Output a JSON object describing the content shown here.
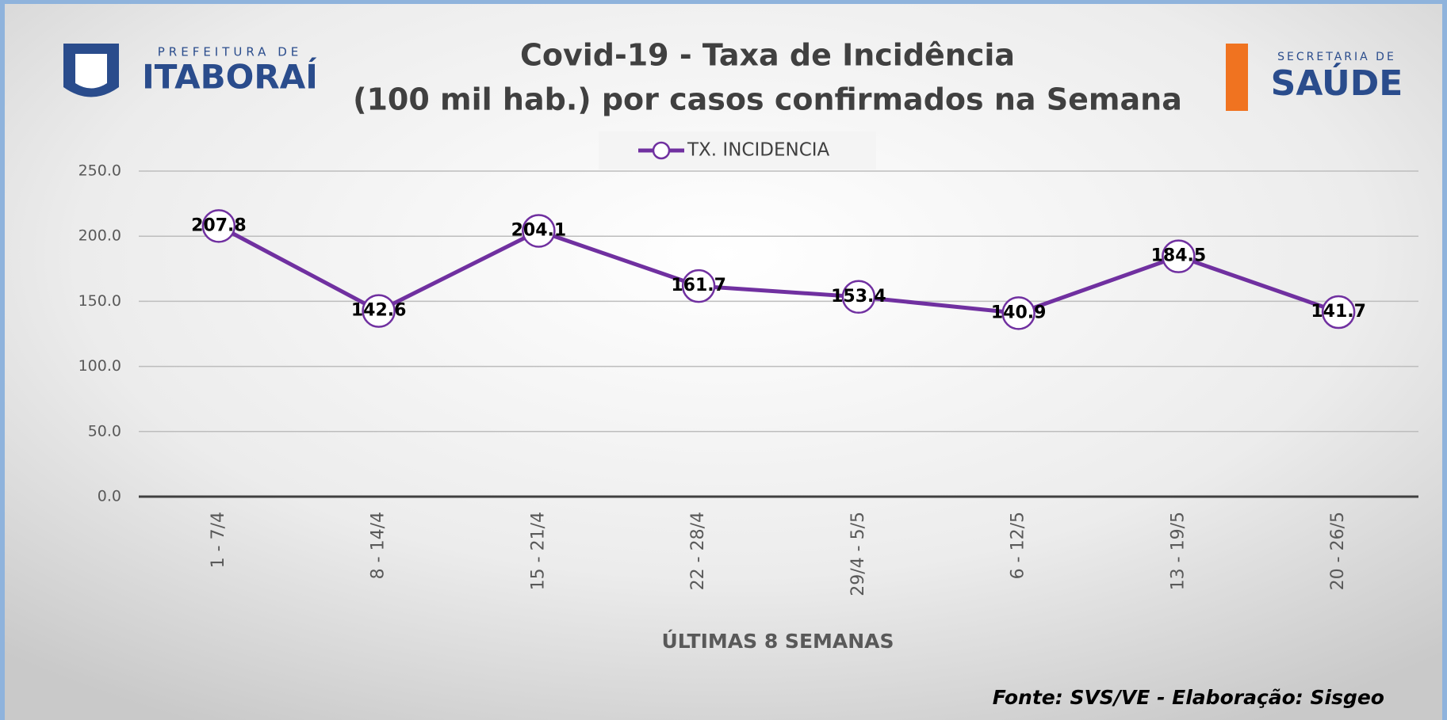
{
  "header": {
    "logo_left": {
      "small": "PREFEITURA DE",
      "large": "ITABORAÍ"
    },
    "logo_right": {
      "small": "SECRETARIA DE",
      "large": "SAÚDE"
    }
  },
  "chart_data": {
    "type": "line",
    "title": [
      "Covid-19 - Taxa de Incidência",
      "(100 mil hab.) por casos confirmados na Semana"
    ],
    "xlabel": "ÚLTIMAS 8 SEMANAS",
    "source": "Fonte: SVS/VE - Elaboração: Sisgeo",
    "categories": [
      "1 - 7/4",
      "8 - 14/4",
      "15 - 21/4",
      "22 - 28/4",
      "29/4 - 5/5",
      "6 - 12/5",
      "13 - 19/5",
      "20 - 26/5"
    ],
    "series": [
      {
        "name": "TX. INCIDENCIA",
        "color": "#7030a0",
        "values": [
          207.8,
          142.6,
          204.1,
          161.7,
          153.4,
          140.9,
          184.5,
          141.7
        ]
      }
    ],
    "ylim": [
      0,
      250
    ],
    "yticks": [
      {
        "value": 0,
        "label": "0.0"
      },
      {
        "value": 50,
        "label": "50.0"
      },
      {
        "value": 100,
        "label": "100.0"
      },
      {
        "value": 150,
        "label": "150.0"
      },
      {
        "value": 200,
        "label": "200.0"
      },
      {
        "value": 250,
        "label": "250.0"
      }
    ],
    "grid": true,
    "legend": "top"
  }
}
